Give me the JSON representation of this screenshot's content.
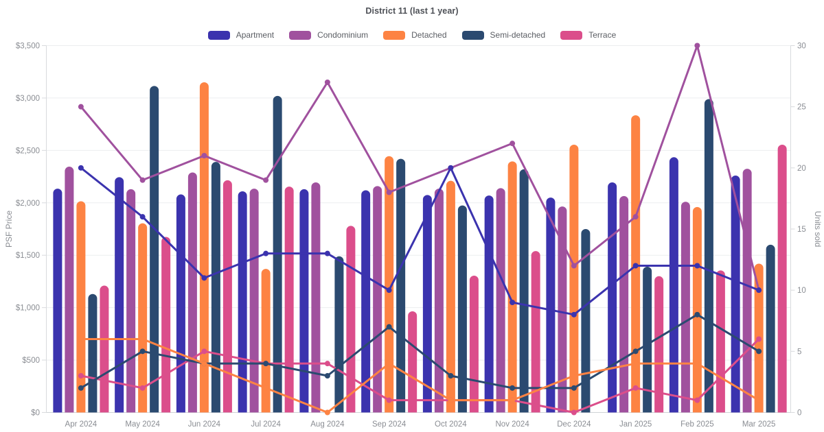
{
  "title": "District 11 (last 1 year)",
  "chart_data": {
    "type": "bar+line",
    "title": "District 11 (last 1 year)",
    "categories": [
      "Apr 2024",
      "May 2024",
      "Jun 2024",
      "Jul 2024",
      "Aug 2024",
      "Sep 2024",
      "Oct 2024",
      "Nov 2024",
      "Dec 2024",
      "Jan 2025",
      "Feb 2025",
      "Mar 2025"
    ],
    "legend_position": "top",
    "grid": "horizontal-only",
    "left_axis": {
      "title": "PSF Price",
      "min": 0,
      "max": 3500,
      "step": 500,
      "tick_labels": [
        "$0",
        "$500",
        "$1,000",
        "$1,500",
        "$2,000",
        "$2,500",
        "$3,000",
        "$3,500"
      ]
    },
    "right_axis": {
      "title": "Units sold",
      "min": 0,
      "max": 30,
      "step": 5,
      "tick_labels": [
        "0",
        "5",
        "10",
        "15",
        "20",
        "25",
        "30"
      ]
    },
    "bar_series": [
      {
        "name": "Apartment",
        "color": "#3b33ae",
        "unit": "USD per sq ft",
        "values": [
          2135,
          2245,
          2080,
          2110,
          2130,
          2120,
          2075,
          2070,
          2050,
          2195,
          2435,
          2260
        ]
      },
      {
        "name": "Condominium",
        "color": "#a0519e",
        "unit": "USD per sq ft",
        "values": [
          2345,
          2130,
          2290,
          2135,
          2195,
          2160,
          2135,
          2140,
          1965,
          2065,
          2010,
          2325
        ]
      },
      {
        "name": "Detached",
        "color": "#fd8343",
        "unit": "USD per sq ft",
        "values": [
          2015,
          1805,
          3150,
          1370,
          0,
          2445,
          2210,
          2395,
          2555,
          2835,
          1960,
          1420
        ]
      },
      {
        "name": "Semi-detached",
        "color": "#2b4a70",
        "unit": "USD per sq ft",
        "values": [
          1130,
          3115,
          2390,
          3020,
          1490,
          2420,
          1975,
          2320,
          1750,
          1390,
          2990,
          1600
        ]
      },
      {
        "name": "Terrace",
        "color": "#db4e8b",
        "unit": "USD per sq ft",
        "values": [
          1210,
          1675,
          2215,
          2155,
          1780,
          965,
          1305,
          1540,
          0,
          1300,
          1355,
          2555
        ]
      }
    ],
    "line_series": [
      {
        "name": "Apartment",
        "color": "#3b33ae",
        "unit": "units sold",
        "values": [
          20,
          16,
          11,
          13,
          13,
          10,
          20,
          9,
          8,
          12,
          12,
          10
        ]
      },
      {
        "name": "Condominium",
        "color": "#a0519e",
        "unit": "units sold",
        "values": [
          25,
          19,
          21,
          19,
          27,
          18,
          20,
          22,
          12,
          16,
          30,
          10
        ]
      },
      {
        "name": "Detached",
        "color": "#fd8343",
        "unit": "units sold",
        "values": [
          6,
          6,
          4,
          2,
          0,
          4,
          1,
          1,
          3,
          4,
          4,
          1
        ]
      },
      {
        "name": "Semi-detached",
        "color": "#2b4a70",
        "unit": "units sold",
        "values": [
          2,
          5,
          4,
          4,
          3,
          7,
          3,
          2,
          2,
          5,
          8,
          5
        ]
      },
      {
        "name": "Terrace",
        "color": "#db4e8b",
        "unit": "units sold",
        "values": [
          3,
          2,
          5,
          4,
          4,
          1,
          1,
          1,
          0,
          2,
          1,
          6
        ]
      }
    ]
  }
}
